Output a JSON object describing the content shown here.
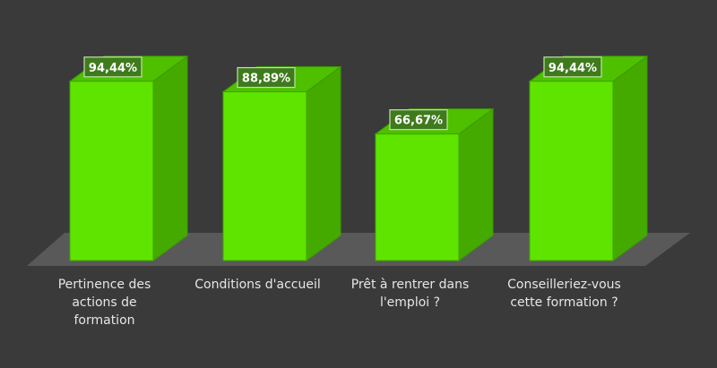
{
  "chart_data": {
    "type": "bar",
    "title": "",
    "xlabel": "",
    "ylabel": "",
    "ylim": [
      0,
      100
    ],
    "grid": false,
    "categories": [
      "Pertinence des actions de formation",
      "Conditions d'accueil",
      "Prêt à rentrer dans l'emploi ?",
      "Conseilleriez-vous cette formation ?"
    ],
    "category_labels_wrapped": [
      "Pertinence des\nactions de\nformation",
      "Conditions d'accueil",
      "Prêt à rentrer dans\nl'emploi ?",
      "Conseilleriez-vous\ncette formation ?"
    ],
    "values": [
      94.44,
      88.89,
      66.67,
      94.44
    ],
    "data_labels": [
      "94,44%",
      "88,89%",
      "66,67%",
      "94,44%"
    ],
    "colors": {
      "background": "#3a3a3a",
      "floor": "#595959",
      "bar_front": "#5fe400",
      "bar_top": "#4ec000",
      "bar_side": "#44aa00",
      "label_box": "#3f7a1c",
      "label_text": "#ffffff",
      "axis_text": "#e6e6e6"
    }
  }
}
